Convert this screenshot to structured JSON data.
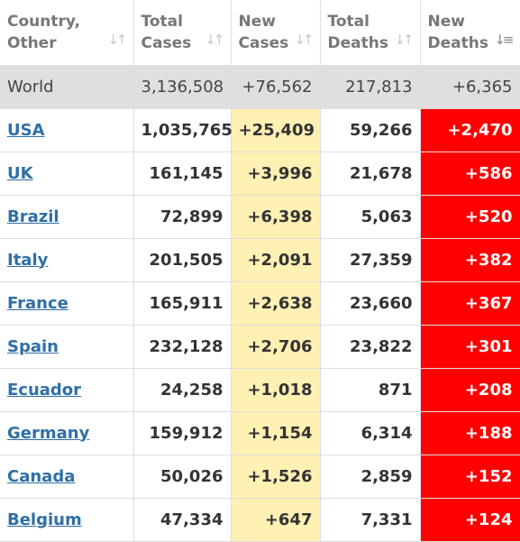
{
  "colors": {
    "header_text": "#777777",
    "link": "#2f6fa6",
    "world_row_bg": "#dfdfdf",
    "new_cases_bg": "#fff0b3",
    "new_deaths_bg": "#ff0000"
  },
  "headers": [
    {
      "label": "Country,\nOther",
      "sort_icon": "sort-arrows-icon"
    },
    {
      "label": "Total\nCases",
      "sort_icon": "sort-arrows-icon"
    },
    {
      "label": "New\nCases",
      "sort_icon": "sort-arrows-icon"
    },
    {
      "label": "Total\nDeaths",
      "sort_icon": "sort-arrows-icon"
    },
    {
      "label": "New\nDeaths",
      "sort_icon": "sort-descending-icon"
    }
  ],
  "world": {
    "country": "World",
    "total_cases": "3,136,508",
    "new_cases": "+76,562",
    "total_deaths": "217,813",
    "new_deaths": "+6,365"
  },
  "rows": [
    {
      "country": "USA",
      "total_cases": "1,035,765",
      "new_cases": "+25,409",
      "total_deaths": "59,266",
      "new_deaths": "+2,470"
    },
    {
      "country": "UK",
      "total_cases": "161,145",
      "new_cases": "+3,996",
      "total_deaths": "21,678",
      "new_deaths": "+586"
    },
    {
      "country": "Brazil",
      "total_cases": "72,899",
      "new_cases": "+6,398",
      "total_deaths": "5,063",
      "new_deaths": "+520"
    },
    {
      "country": "Italy",
      "total_cases": "201,505",
      "new_cases": "+2,091",
      "total_deaths": "27,359",
      "new_deaths": "+382"
    },
    {
      "country": "France",
      "total_cases": "165,911",
      "new_cases": "+2,638",
      "total_deaths": "23,660",
      "new_deaths": "+367"
    },
    {
      "country": "Spain",
      "total_cases": "232,128",
      "new_cases": "+2,706",
      "total_deaths": "23,822",
      "new_deaths": "+301"
    },
    {
      "country": "Ecuador",
      "total_cases": "24,258",
      "new_cases": "+1,018",
      "total_deaths": "871",
      "new_deaths": "+208"
    },
    {
      "country": "Germany",
      "total_cases": "159,912",
      "new_cases": "+1,154",
      "total_deaths": "6,314",
      "new_deaths": "+188"
    },
    {
      "country": "Canada",
      "total_cases": "50,026",
      "new_cases": "+1,526",
      "total_deaths": "2,859",
      "new_deaths": "+152"
    },
    {
      "country": "Belgium",
      "total_cases": "47,334",
      "new_cases": "+647",
      "total_deaths": "7,331",
      "new_deaths": "+124"
    }
  ]
}
